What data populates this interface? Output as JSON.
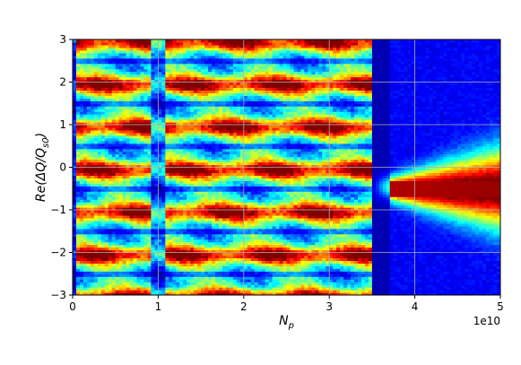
{
  "chart_data": {
    "type": "heatmap",
    "title": "",
    "xlabel_main": "N",
    "xlabel_sub": "p",
    "ylabel_prefix": "Re(ΔQ/Q",
    "ylabel_sub": "s0",
    "ylabel_suffix": ")",
    "x_offset_label": "1e10",
    "xlim": [
      0,
      5
    ],
    "ylim": [
      -3,
      3
    ],
    "x_ticks": [
      0,
      1,
      2,
      3,
      4,
      5
    ],
    "x_tick_labels": [
      "0",
      "1",
      "2",
      "3",
      "4",
      "5"
    ],
    "y_ticks": [
      -3,
      -2,
      -1,
      0,
      1,
      2,
      3
    ],
    "y_tick_labels": [
      "−3",
      "−2",
      "−1",
      "0",
      "1",
      "2",
      "3"
    ],
    "grid": true,
    "colormap": "jet",
    "colormap_stops": [
      "#00007f",
      "#0000ff",
      "#00ffff",
      "#ffff00",
      "#ff0000",
      "#7f0000"
    ],
    "background_color": "#00008f",
    "modes_bands": [
      {
        "mode": 3,
        "center": 2.9,
        "x_range": [
          0,
          3.5
        ],
        "intensity": 0.55
      },
      {
        "mode": 2,
        "center": 1.9,
        "x_range": [
          0,
          3.5
        ],
        "intensity": 0.75
      },
      {
        "mode": 1,
        "center": 0.9,
        "x_range": [
          0,
          3.5
        ],
        "intensity": 0.95
      },
      {
        "mode": 0,
        "center": 0.0,
        "x_range": [
          0,
          3.5
        ],
        "intensity": 0.7
      },
      {
        "mode": -1,
        "center": -1.0,
        "x_range": [
          0,
          3.5
        ],
        "intensity": 0.95
      },
      {
        "mode": -2,
        "center": -1.9,
        "x_range": [
          0,
          3.5
        ],
        "intensity": 0.7
      },
      {
        "mode": -3,
        "center": -2.9,
        "x_range": [
          0,
          3.5
        ],
        "intensity": 0.55
      }
    ],
    "merged_mode": {
      "x_range": [
        3.6,
        5
      ],
      "center": -0.5,
      "intensity": 1.0
    },
    "dark_gap_x": [
      3.5,
      3.7
    ]
  }
}
